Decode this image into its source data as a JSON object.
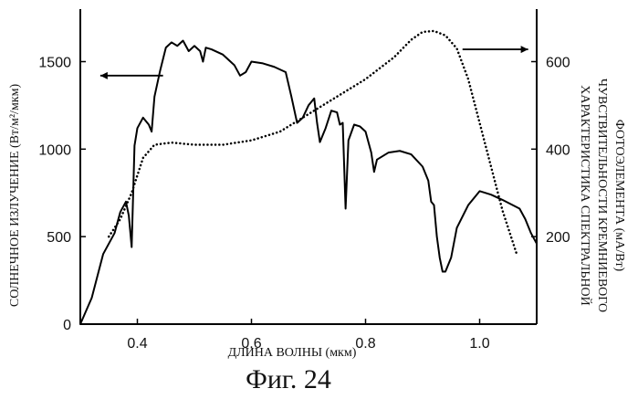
{
  "chart_data": {
    "type": "line",
    "caption": "Фиг. 24",
    "xlabel": "ДЛИНА ВОЛНЫ (мкм)",
    "ylabel_left": "СОЛНЕЧНОЕ ИЗЛУЧЕНИЕ (Вт/м²/мкм)",
    "ylabel_right_lines": [
      "ХАРАКТЕРИСТИКА СПЕКТРАЛЬНОЙ",
      "ЧУВСТВИТЕЛЬНОСТИ КРЕМНИЕВОГО",
      "ФОТОЭЛЕМЕНТА (мА/Вт)"
    ],
    "xlim": [
      0.3,
      1.1
    ],
    "ylim_left": [
      0,
      1800
    ],
    "ylim_right": [
      0,
      720
    ],
    "x_ticks": [
      {
        "value": 0.4,
        "label": "0.4"
      },
      {
        "value": 0.6,
        "label": "0.6"
      },
      {
        "value": 0.8,
        "label": "0.8"
      },
      {
        "value": 1.0,
        "label": "1.0"
      }
    ],
    "y_left_ticks": [
      {
        "value": 0,
        "label": "0"
      },
      {
        "value": 500,
        "label": "500"
      },
      {
        "value": 1000,
        "label": "1000"
      },
      {
        "value": 1500,
        "label": "1500"
      }
    ],
    "y_right_ticks": [
      {
        "value": 200,
        "label": "200"
      },
      {
        "value": 400,
        "label": "400"
      },
      {
        "value": 600,
        "label": "600"
      }
    ],
    "grid": false,
    "series": [
      {
        "style": "solid",
        "axis": "left",
        "points": [
          [
            0.3,
            0
          ],
          [
            0.32,
            150
          ],
          [
            0.34,
            400
          ],
          [
            0.36,
            520
          ],
          [
            0.37,
            640
          ],
          [
            0.38,
            700
          ],
          [
            0.385,
            620
          ],
          [
            0.39,
            440
          ],
          [
            0.395,
            1020
          ],
          [
            0.4,
            1120
          ],
          [
            0.41,
            1180
          ],
          [
            0.42,
            1140
          ],
          [
            0.425,
            1100
          ],
          [
            0.43,
            1300
          ],
          [
            0.44,
            1450
          ],
          [
            0.45,
            1580
          ],
          [
            0.46,
            1610
          ],
          [
            0.47,
            1590
          ],
          [
            0.48,
            1620
          ],
          [
            0.49,
            1560
          ],
          [
            0.5,
            1590
          ],
          [
            0.51,
            1560
          ],
          [
            0.515,
            1500
          ],
          [
            0.52,
            1580
          ],
          [
            0.53,
            1570
          ],
          [
            0.55,
            1540
          ],
          [
            0.57,
            1480
          ],
          [
            0.58,
            1420
          ],
          [
            0.59,
            1440
          ],
          [
            0.6,
            1500
          ],
          [
            0.62,
            1490
          ],
          [
            0.64,
            1470
          ],
          [
            0.66,
            1440
          ],
          [
            0.67,
            1300
          ],
          [
            0.68,
            1150
          ],
          [
            0.69,
            1180
          ],
          [
            0.7,
            1250
          ],
          [
            0.71,
            1290
          ],
          [
            0.715,
            1150
          ],
          [
            0.72,
            1040
          ],
          [
            0.73,
            1120
          ],
          [
            0.74,
            1220
          ],
          [
            0.75,
            1210
          ],
          [
            0.755,
            1140
          ],
          [
            0.76,
            1150
          ],
          [
            0.765,
            660
          ],
          [
            0.77,
            1050
          ],
          [
            0.78,
            1140
          ],
          [
            0.79,
            1130
          ],
          [
            0.8,
            1100
          ],
          [
            0.81,
            980
          ],
          [
            0.815,
            870
          ],
          [
            0.82,
            940
          ],
          [
            0.84,
            980
          ],
          [
            0.86,
            990
          ],
          [
            0.88,
            970
          ],
          [
            0.9,
            900
          ],
          [
            0.91,
            820
          ],
          [
            0.915,
            700
          ],
          [
            0.92,
            680
          ],
          [
            0.925,
            500
          ],
          [
            0.93,
            380
          ],
          [
            0.935,
            300
          ],
          [
            0.94,
            300
          ],
          [
            0.95,
            380
          ],
          [
            0.96,
            550
          ],
          [
            0.98,
            680
          ],
          [
            1.0,
            760
          ],
          [
            1.02,
            740
          ],
          [
            1.04,
            710
          ],
          [
            1.07,
            660
          ],
          [
            1.08,
            600
          ],
          [
            1.09,
            520
          ],
          [
            1.1,
            460
          ]
        ]
      },
      {
        "style": "dotted",
        "axis": "right",
        "points": [
          [
            0.35,
            200
          ],
          [
            0.37,
            240
          ],
          [
            0.39,
            300
          ],
          [
            0.4,
            340
          ],
          [
            0.41,
            380
          ],
          [
            0.43,
            410
          ],
          [
            0.46,
            415
          ],
          [
            0.5,
            410
          ],
          [
            0.55,
            410
          ],
          [
            0.6,
            420
          ],
          [
            0.65,
            440
          ],
          [
            0.7,
            480
          ],
          [
            0.75,
            520
          ],
          [
            0.8,
            560
          ],
          [
            0.85,
            610
          ],
          [
            0.88,
            650
          ],
          [
            0.9,
            668
          ],
          [
            0.92,
            670
          ],
          [
            0.94,
            660
          ],
          [
            0.96,
            630
          ],
          [
            0.98,
            560
          ],
          [
            1.0,
            460
          ],
          [
            1.02,
            360
          ],
          [
            1.04,
            260
          ],
          [
            1.06,
            180
          ],
          [
            1.065,
            160
          ]
        ]
      }
    ],
    "annotations": [
      {
        "type": "arrow",
        "direction": "left",
        "from_x": 0.445,
        "to_x": 0.335,
        "y_left": 1420
      },
      {
        "type": "arrow",
        "direction": "right",
        "from_x": 0.97,
        "to_x": 1.085,
        "y_left": 1570
      }
    ]
  }
}
